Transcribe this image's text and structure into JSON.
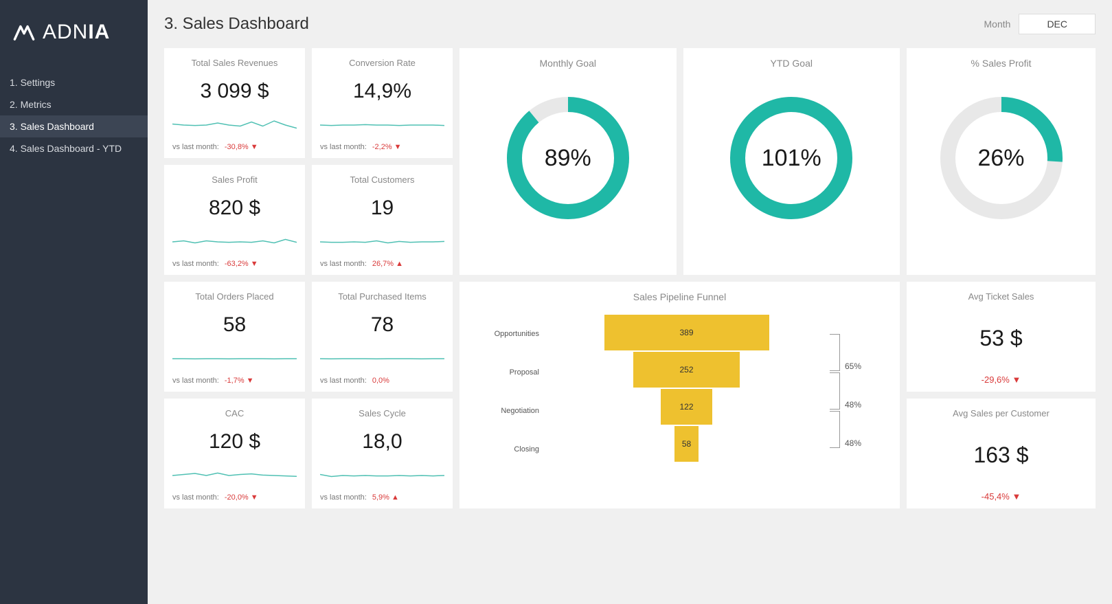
{
  "brand": {
    "name_light": "ADN",
    "name_bold": "IA"
  },
  "nav": {
    "items": [
      {
        "label": "1. Settings"
      },
      {
        "label": "2. Metrics"
      },
      {
        "label": "3. Sales Dashboard"
      },
      {
        "label": "4. Sales Dashboard - YTD"
      }
    ],
    "active_index": 2
  },
  "header": {
    "title": "3. Sales Dashboard",
    "month_label": "Month",
    "month_value": "DEC"
  },
  "colors": {
    "teal": "#1fb8a6",
    "donut_bg": "#e8e8e8",
    "funnel": "#eec12f",
    "delta_red": "#d93a3a",
    "spark": "#4fc0b3"
  },
  "kpis": [
    {
      "title": "Total Sales Revenues",
      "value": "3 099 $",
      "foot_label": "vs last month:",
      "delta": "-30,8%",
      "dir": "down",
      "spark": [
        0.55,
        0.5,
        0.48,
        0.5,
        0.6,
        0.5,
        0.45,
        0.65,
        0.45,
        0.7,
        0.5,
        0.35
      ]
    },
    {
      "title": "Conversion Rate",
      "value": "14,9%",
      "foot_label": "vs last month:",
      "delta": "-2,2%",
      "dir": "down",
      "spark": [
        0.5,
        0.48,
        0.5,
        0.5,
        0.52,
        0.5,
        0.5,
        0.48,
        0.5,
        0.5,
        0.5,
        0.48
      ]
    },
    {
      "title": "Sales Profit",
      "value": "820 $",
      "foot_label": "vs last month:",
      "delta": "-63,2%",
      "dir": "down",
      "spark": [
        0.5,
        0.55,
        0.45,
        0.55,
        0.5,
        0.48,
        0.5,
        0.48,
        0.55,
        0.45,
        0.62,
        0.48
      ]
    },
    {
      "title": "Total Customers",
      "value": "19",
      "foot_label": "vs last month:",
      "delta": "26,7%",
      "dir": "up",
      "spark": [
        0.5,
        0.48,
        0.48,
        0.5,
        0.48,
        0.55,
        0.45,
        0.52,
        0.48,
        0.5,
        0.5,
        0.52
      ]
    },
    {
      "title": "Total Orders Placed",
      "value": "58",
      "foot_label": "vs last month:",
      "delta": "-1,7%",
      "dir": "down",
      "spark": [
        0.5,
        0.5,
        0.49,
        0.5,
        0.5,
        0.49,
        0.5,
        0.5,
        0.5,
        0.49,
        0.5,
        0.5
      ]
    },
    {
      "title": "Total Purchased Items",
      "value": "78",
      "foot_label": "vs last month:",
      "delta": "0,0%",
      "dir": "neutral",
      "spark": [
        0.5,
        0.49,
        0.5,
        0.5,
        0.5,
        0.49,
        0.5,
        0.5,
        0.5,
        0.49,
        0.5,
        0.5
      ]
    },
    {
      "title": "CAC",
      "value": "120 $",
      "foot_label": "vs last month:",
      "delta": "-20,0%",
      "dir": "down",
      "spark": [
        0.5,
        0.55,
        0.6,
        0.5,
        0.62,
        0.5,
        0.55,
        0.58,
        0.52,
        0.5,
        0.48,
        0.46
      ]
    },
    {
      "title": "Sales Cycle",
      "value": "18,0",
      "foot_label": "vs last month:",
      "delta": "5,9%",
      "dir": "up",
      "spark": [
        0.55,
        0.45,
        0.5,
        0.48,
        0.5,
        0.48,
        0.48,
        0.5,
        0.48,
        0.5,
        0.48,
        0.5
      ]
    }
  ],
  "donuts": [
    {
      "title": "Monthly Goal",
      "percent": 89,
      "label": "89%",
      "color": "#1fb8a6"
    },
    {
      "title": "YTD Goal",
      "percent": 101,
      "label": "101%",
      "color": "#1fb8a6"
    },
    {
      "title": "% Sales Profit",
      "percent": 26,
      "label": "26%",
      "color": "#1fb8a6"
    }
  ],
  "funnel": {
    "title": "Sales Pipeline Funnel",
    "max": 389,
    "stages": [
      {
        "label": "Opportunities",
        "value": 389
      },
      {
        "label": "Proposal",
        "value": 252
      },
      {
        "label": "Negotiation",
        "value": 122
      },
      {
        "label": "Closing",
        "value": 58
      }
    ],
    "rates": [
      "65%",
      "48%",
      "48%"
    ],
    "bar_color": "#eec12f",
    "max_bar_width": 240
  },
  "avgs": [
    {
      "title": "Avg Ticket Sales",
      "value": "53 $",
      "delta": "-29,6%",
      "dir": "down"
    },
    {
      "title": "Avg Sales per Customer",
      "value": "163 $",
      "delta": "-45,4%",
      "dir": "down"
    }
  ]
}
